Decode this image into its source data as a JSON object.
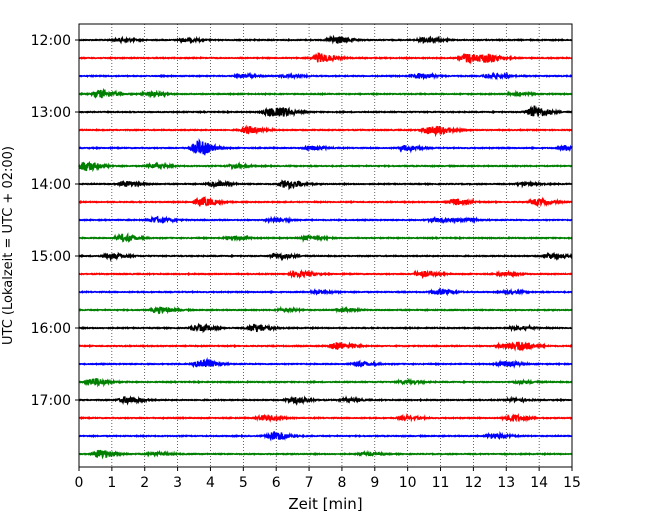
{
  "chart_data": {
    "type": "line",
    "title": "",
    "xlabel": "Zeit  [min]",
    "ylabel": "UTC (Lokalzeit = UTC + 02:00)",
    "xlim": [
      0,
      15
    ],
    "x_ticks": [
      0,
      1,
      2,
      3,
      4,
      5,
      6,
      7,
      8,
      9,
      10,
      11,
      12,
      13,
      14,
      15
    ],
    "x_tick_labels": [
      "0",
      "1",
      "2",
      "3",
      "4",
      "5",
      "6",
      "7",
      "8",
      "9",
      "10",
      "11",
      "12",
      "13",
      "14",
      "15"
    ],
    "y_tick_labels": [
      "12:00",
      "13:00",
      "14:00",
      "15:00",
      "16:00",
      "17:00"
    ],
    "y_tick_trace_index": [
      0,
      4,
      8,
      12,
      16,
      20
    ],
    "vertical_grid": "dotted",
    "trace_colors": [
      "#000000",
      "#ff0000",
      "#0000ff",
      "#008000"
    ],
    "trace_interval_minutes": 15,
    "traces": [
      {
        "start": "12:00",
        "events": [
          [
            1.2,
            0.5
          ],
          [
            3.2,
            0.5
          ],
          [
            7.75,
            1.2
          ],
          [
            10.5,
            0.8
          ]
        ]
      },
      {
        "start": "12:15",
        "events": [
          [
            7.3,
            1.3
          ],
          [
            11.8,
            1.4
          ],
          [
            12.4,
            1.1
          ]
        ]
      },
      {
        "start": "12:30",
        "events": [
          [
            4.9,
            0.5
          ],
          [
            6.3,
            0.4
          ],
          [
            10.3,
            0.8
          ],
          [
            12.5,
            0.7
          ]
        ]
      },
      {
        "start": "12:45",
        "events": [
          [
            0.6,
            1.2
          ],
          [
            2.1,
            0.6
          ],
          [
            13.2,
            0.4
          ]
        ]
      },
      {
        "start": "13:00",
        "events": [
          [
            5.8,
            1.2
          ],
          [
            6.2,
            0.8
          ],
          [
            13.8,
            1.8
          ]
        ]
      },
      {
        "start": "13:15",
        "events": [
          [
            5.1,
            1.0
          ],
          [
            10.6,
            1.2
          ],
          [
            11.0,
            0.7
          ]
        ]
      },
      {
        "start": "13:30",
        "events": [
          [
            3.6,
            2.2
          ],
          [
            7.0,
            0.6
          ],
          [
            9.9,
            0.8
          ],
          [
            14.8,
            0.8
          ]
        ]
      },
      {
        "start": "13:45",
        "events": [
          [
            0.15,
            1.5
          ],
          [
            2.2,
            0.6
          ],
          [
            4.7,
            0.5
          ]
        ]
      },
      {
        "start": "14:00",
        "events": [
          [
            1.4,
            0.8
          ],
          [
            4.1,
            0.7
          ],
          [
            6.3,
            1.3
          ],
          [
            13.5,
            0.5
          ]
        ]
      },
      {
        "start": "14:15",
        "events": [
          [
            3.7,
            1.3
          ],
          [
            11.4,
            0.9
          ],
          [
            13.9,
            0.9
          ]
        ]
      },
      {
        "start": "14:30",
        "events": [
          [
            2.3,
            0.9
          ],
          [
            5.9,
            0.6
          ],
          [
            10.8,
            0.6
          ],
          [
            11.6,
            0.5
          ]
        ]
      },
      {
        "start": "14:45",
        "events": [
          [
            1.3,
            1.0
          ],
          [
            4.6,
            0.5
          ],
          [
            6.9,
            0.6
          ]
        ]
      },
      {
        "start": "15:00",
        "events": [
          [
            0.9,
            0.9
          ],
          [
            6.0,
            0.8
          ],
          [
            14.3,
            0.8
          ]
        ]
      },
      {
        "start": "15:15",
        "events": [
          [
            6.6,
            0.9
          ],
          [
            10.4,
            0.9
          ],
          [
            12.9,
            0.5
          ]
        ]
      },
      {
        "start": "15:30",
        "events": [
          [
            7.2,
            0.5
          ],
          [
            10.9,
            0.8
          ],
          [
            13.0,
            0.4
          ]
        ]
      },
      {
        "start": "15:45",
        "events": [
          [
            2.4,
            0.9
          ],
          [
            6.2,
            0.4
          ],
          [
            8.0,
            0.4
          ]
        ]
      },
      {
        "start": "16:00",
        "events": [
          [
            3.6,
            0.9
          ],
          [
            5.3,
            1.2
          ],
          [
            13.3,
            0.6
          ]
        ]
      },
      {
        "start": "16:15",
        "events": [
          [
            7.8,
            1.1
          ],
          [
            12.9,
            0.8
          ],
          [
            13.4,
            1.2
          ]
        ]
      },
      {
        "start": "16:30",
        "events": [
          [
            3.7,
            1.5
          ],
          [
            8.5,
            0.6
          ],
          [
            12.9,
            0.8
          ]
        ]
      },
      {
        "start": "16:45",
        "events": [
          [
            0.4,
            1.2
          ],
          [
            9.9,
            0.5
          ],
          [
            13.4,
            0.4
          ]
        ]
      },
      {
        "start": "17:00",
        "events": [
          [
            1.4,
            1.0
          ],
          [
            6.5,
            0.9
          ],
          [
            8.1,
            0.4
          ],
          [
            13.2,
            0.4
          ]
        ]
      },
      {
        "start": "17:15",
        "events": [
          [
            5.6,
            0.8
          ],
          [
            9.9,
            0.5
          ],
          [
            13.1,
            1.0
          ]
        ]
      },
      {
        "start": "17:30",
        "events": [
          [
            5.9,
            1.4
          ],
          [
            12.6,
            0.8
          ]
        ]
      },
      {
        "start": "17:45",
        "events": [
          [
            0.6,
            1.2
          ],
          [
            2.3,
            0.5
          ],
          [
            8.7,
            0.4
          ]
        ]
      }
    ]
  }
}
